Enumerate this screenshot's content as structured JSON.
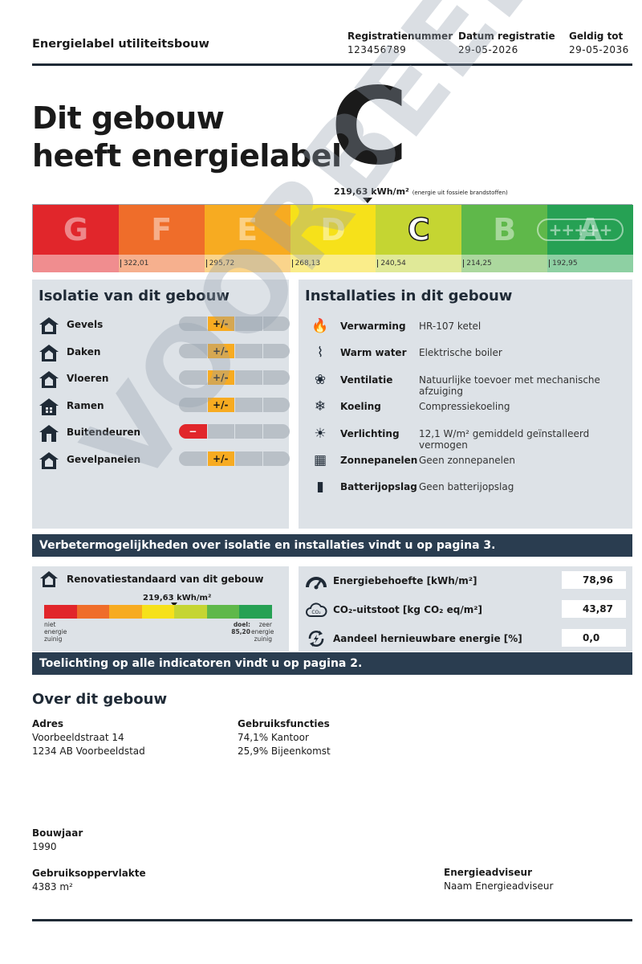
{
  "header": {
    "doc_title": "Energielabel utiliteitsbouw",
    "reg_nr_label": "Registratienummer",
    "reg_nr_value": "123456789",
    "reg_date_label": "Datum registratie",
    "reg_date_value": "29-05-2026",
    "valid_label": "Geldig tot",
    "valid_value": "29-05-2036"
  },
  "hero": {
    "line1": "Dit gebouw",
    "line2": "heeft energielabel",
    "label": "C",
    "energy_value": "219,63 kWh/m²",
    "energy_note": "(energie uit fossiele brandstoffen)"
  },
  "label_scale": {
    "segments": [
      {
        "letter": "G",
        "color": "#e1262b",
        "tint": "#f08d8f",
        "threshold": ""
      },
      {
        "letter": "F",
        "color": "#ef6d2a",
        "tint": "#f6b08e",
        "threshold": "322,01"
      },
      {
        "letter": "E",
        "color": "#f7ab21",
        "tint": "#fad48b",
        "threshold": "295,72"
      },
      {
        "letter": "D",
        "color": "#f6e11a",
        "tint": "#faed8a",
        "threshold": "268,13"
      },
      {
        "letter": "C",
        "color": "#c5d532",
        "tint": "#e0e998",
        "threshold": "240,54"
      },
      {
        "letter": "B",
        "color": "#5fb84a",
        "tint": "#acd89e",
        "threshold": "214,25"
      },
      {
        "letter": "A",
        "color": "#26a154",
        "tint": "#8ed0a3",
        "threshold": "192,95"
      }
    ],
    "active": "C",
    "a_plus": "+++++"
  },
  "isolatie": {
    "title": "Isolatie van dit gebouw",
    "items": [
      {
        "name": "Gevels",
        "rating": "+/-",
        "color": "#f7ab21"
      },
      {
        "name": "Daken",
        "rating": "+/-",
        "color": "#f7ab21"
      },
      {
        "name": "Vloeren",
        "rating": "+/-",
        "color": "#f7ab21"
      },
      {
        "name": "Ramen",
        "rating": "+/-",
        "color": "#f7ab21"
      },
      {
        "name": "Buitendeuren",
        "rating": "−",
        "color": "#e1262b"
      },
      {
        "name": "Gevelpanelen",
        "rating": "+/-",
        "color": "#f7ab21"
      }
    ]
  },
  "installaties": {
    "title": "Installaties in dit gebouw",
    "items": [
      {
        "name": "Verwarming",
        "value": "HR-107 ketel",
        "icon": "flame-icon"
      },
      {
        "name": "Warm water",
        "value": "Elektrische boiler",
        "icon": "tap-icon"
      },
      {
        "name": "Ventilatie",
        "value": "Natuurlijke toevoer met mechanische afzuiging",
        "icon": "fan-icon"
      },
      {
        "name": "Koeling",
        "value": "Compressiekoeling",
        "icon": "snowflake-icon"
      },
      {
        "name": "Verlichting",
        "value": "12,1 W/m² gemiddeld geïnstalleerd vermogen",
        "icon": "lightbulb-icon"
      },
      {
        "name": "Zonnepanelen",
        "value": "Geen zonnepanelen",
        "icon": "solar-panel-icon"
      },
      {
        "name": "Batterijopslag",
        "value": "Geen batterijopslag",
        "icon": "battery-icon"
      }
    ]
  },
  "banner1": "Verbetermogelijkheden over isolatie en installaties vindt u op pagina 3.",
  "renovatie": {
    "title": "Renovatiestandaard van dit gebouw",
    "value": "219,63 kWh/m²",
    "left_label": "niet energie zuinig",
    "goal_label": "doel:",
    "goal_value": "85,20",
    "right_label": "zeer energie zuinig"
  },
  "indicatoren": {
    "items": [
      {
        "name": "Energiebehoefte [kWh/m²]",
        "value": "78,96"
      },
      {
        "name": "CO₂-uitstoot [kg CO₂ eq/m²]",
        "value": "43,87"
      },
      {
        "name": "Aandeel hernieuwbare energie [%]",
        "value": "0,0"
      }
    ]
  },
  "banner2": "Toelichting op alle indicatoren vindt u op pagina 2.",
  "about": {
    "title": "Over dit gebouw",
    "adres_label": "Adres",
    "adres_line1": "Voorbeeldstraat 14",
    "adres_line2": "1234 AB Voorbeeldstad",
    "functies_label": "Gebruiksfuncties",
    "functie1": "74,1% Kantoor",
    "functie2": "25,9% Bijeenkomst",
    "bouwjaar_label": "Bouwjaar",
    "bouwjaar_value": "1990",
    "opp_label": "Gebruiksoppervlakte",
    "opp_value": "4383 m²",
    "adviseur_label": "Energieadviseur",
    "adviseur_value": "Naam Energieadviseur"
  },
  "watermark": "VOORBEELD"
}
